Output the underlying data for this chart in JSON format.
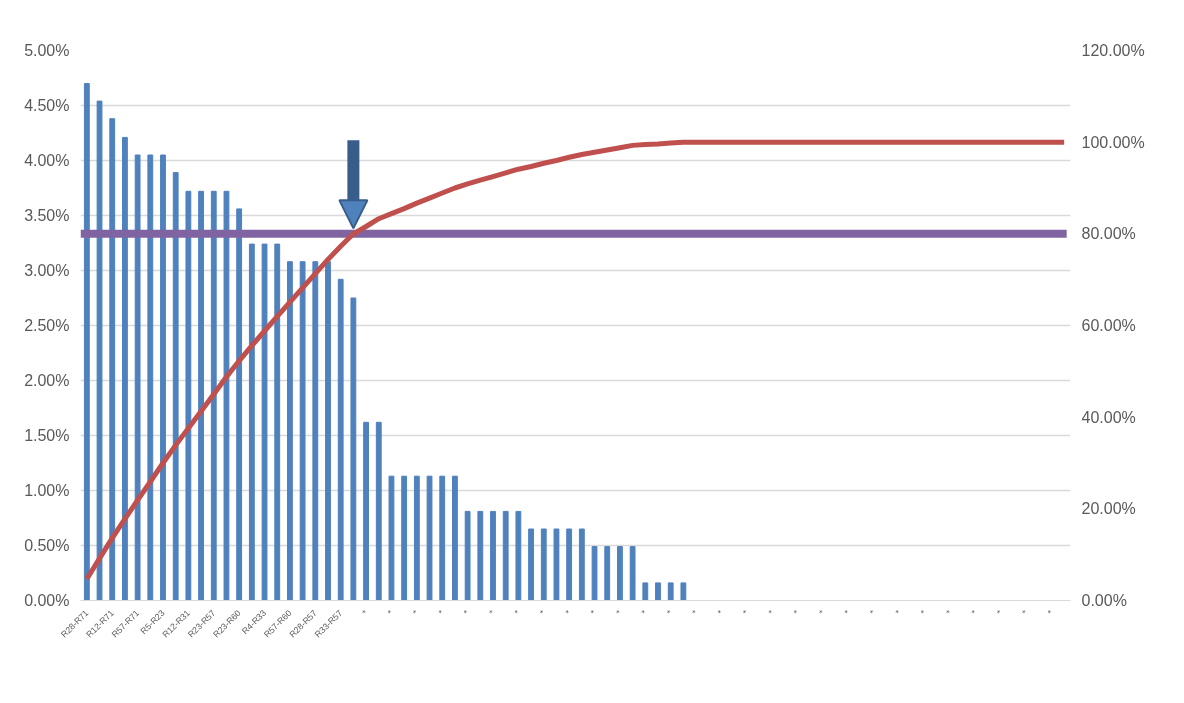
{
  "chart_data": {
    "type": "bar",
    "categories": [
      "R28-R71",
      null,
      "R12-R71",
      null,
      "R57-R71",
      null,
      "R5-R23",
      null,
      "R12-R31",
      null,
      "R23-R57",
      null,
      "R23-R60",
      null,
      "R4-R33",
      null,
      "R57-R60",
      null,
      "R28-R57",
      null,
      "R33-R57",
      null,
      "*",
      null,
      "*",
      null,
      "*",
      null,
      "*",
      null,
      "*",
      null,
      "*",
      null,
      "*",
      null,
      "*",
      null,
      "*",
      null,
      "*",
      null,
      "*",
      null,
      "*",
      null,
      "*",
      null,
      "*",
      null,
      "*",
      null,
      "*",
      null,
      "*",
      null,
      "*",
      null,
      "*",
      null,
      "*",
      null,
      "*",
      null,
      "*",
      null,
      "*",
      null,
      "*",
      null,
      "*",
      null,
      "*",
      null,
      "*",
      null,
      "*",
      null
    ],
    "series": [
      {
        "color": "#4f81bd",
        "values": [
          4.7,
          4.54,
          4.38,
          4.21,
          4.05,
          4.05,
          4.05,
          3.89,
          3.72,
          3.72,
          3.72,
          3.72,
          3.56,
          3.24,
          3.24,
          3.24,
          3.08,
          3.08,
          3.08,
          3.08,
          2.92,
          2.75,
          1.62,
          1.62,
          1.13,
          1.13,
          1.13,
          1.13,
          1.13,
          1.13,
          0.81,
          0.81,
          0.81,
          0.81,
          0.81,
          0.65,
          0.65,
          0.65,
          0.65,
          0.65,
          0.49,
          0.49,
          0.49,
          0.49,
          0.16,
          0.16,
          0.16,
          0.16,
          null,
          null,
          null,
          null,
          null,
          null,
          null,
          null,
          null,
          null,
          null,
          null,
          null,
          null,
          null,
          null,
          null,
          null,
          null,
          null,
          null,
          null,
          null,
          null,
          null,
          null,
          null,
          null,
          null,
          null
        ]
      },
      {
        "type": "line",
        "axis": "y2",
        "color": "#c0504d",
        "values": [
          4.7,
          9.2,
          13.6,
          17.8,
          21.9,
          25.9,
          30.0,
          33.9,
          37.6,
          41.3,
          45.0,
          48.8,
          52.3,
          55.6,
          58.8,
          62.0,
          65.1,
          68.2,
          71.3,
          74.4,
          77.3,
          80.0,
          81.6,
          83.3,
          84.4,
          85.5,
          86.7,
          87.8,
          88.9,
          90.0,
          90.9,
          91.7,
          92.5,
          93.3,
          94.1,
          94.7,
          95.4,
          96.0,
          96.7,
          97.3,
          97.8,
          98.3,
          98.8,
          99.3,
          99.5,
          99.6,
          99.8,
          100,
          100,
          100,
          100,
          100,
          100,
          100,
          100,
          100,
          100,
          100,
          100,
          100,
          100,
          100,
          100,
          100,
          100,
          100,
          100,
          100,
          100,
          100,
          100,
          100,
          100,
          100,
          100,
          100,
          100,
          100
        ]
      }
    ],
    "ylim": [
      0,
      5
    ],
    "yticks": [
      {
        "value": 0,
        "label": "0.00%"
      },
      {
        "value": 0.5,
        "label": "0.50%"
      },
      {
        "value": 1,
        "label": "1.00%"
      },
      {
        "value": 1.5,
        "label": "1.50%"
      },
      {
        "value": 2,
        "label": "2.00%"
      },
      {
        "value": 2.5,
        "label": "2.50%"
      },
      {
        "value": 3,
        "label": "3.00%"
      },
      {
        "value": 3.5,
        "label": "3.50%"
      },
      {
        "value": 4,
        "label": "4.00%"
      },
      {
        "value": 4.5,
        "label": "4.50%"
      },
      {
        "value": 5,
        "label": "5.00%"
      }
    ],
    "y2lim": [
      0,
      120
    ],
    "y2ticks": [
      {
        "value": 0,
        "label": "0.00%"
      },
      {
        "value": 20,
        "label": "20.00%"
      },
      {
        "value": 40,
        "label": "40.00%"
      },
      {
        "value": 60,
        "label": "60.00%"
      },
      {
        "value": 80,
        "label": "80.00%"
      },
      {
        "value": 100,
        "label": "100.00%"
      },
      {
        "value": 120,
        "label": "120.00%"
      }
    ],
    "ref_lines": [
      {
        "axis": "y2",
        "value": 80,
        "color": "#8064a2"
      }
    ],
    "grid": "y"
  }
}
